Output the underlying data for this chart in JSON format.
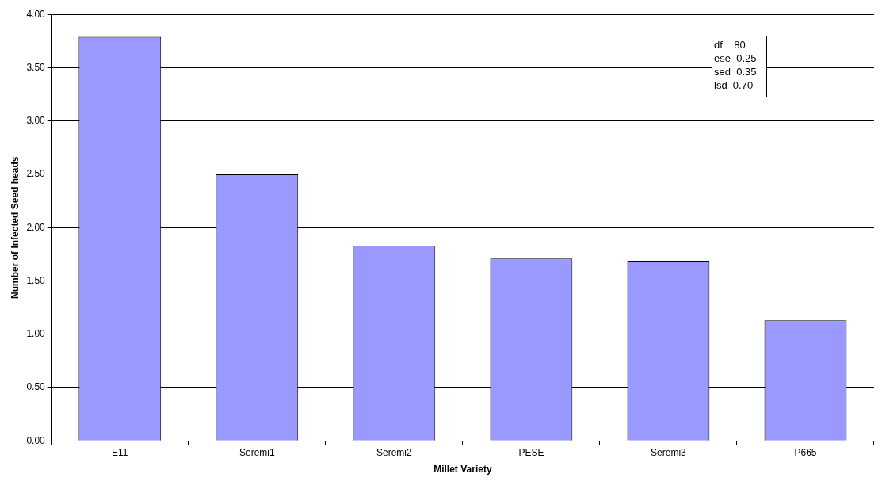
{
  "chart_data": {
    "type": "bar",
    "xlabel": "Millet Variety",
    "ylabel": "Number of Infected Seed heads",
    "categories": [
      "E11",
      "Seremi1",
      "Seremi2",
      "PESE",
      "Seremi3",
      "P665"
    ],
    "values": [
      3.79,
      2.5,
      1.83,
      1.71,
      1.69,
      1.13
    ],
    "color": "#9999ff",
    "ylim": [
      0,
      4
    ],
    "yticks": [
      {
        "value": 0,
        "label": "0.00"
      },
      {
        "value": 0.5,
        "label": "0.50"
      },
      {
        "value": 1,
        "label": "1.00"
      },
      {
        "value": 1.5,
        "label": "1.50"
      },
      {
        "value": 2,
        "label": "2.00"
      },
      {
        "value": 2.5,
        "label": "2.50"
      },
      {
        "value": 3,
        "label": "3.00"
      },
      {
        "value": 3.5,
        "label": "3.50"
      },
      {
        "value": 4,
        "label": "4.00"
      }
    ],
    "grid": "y",
    "legend": false,
    "annotations": [
      "df    80",
      "ese  0.25",
      "sed  0.35",
      "lsd  0.70"
    ]
  }
}
